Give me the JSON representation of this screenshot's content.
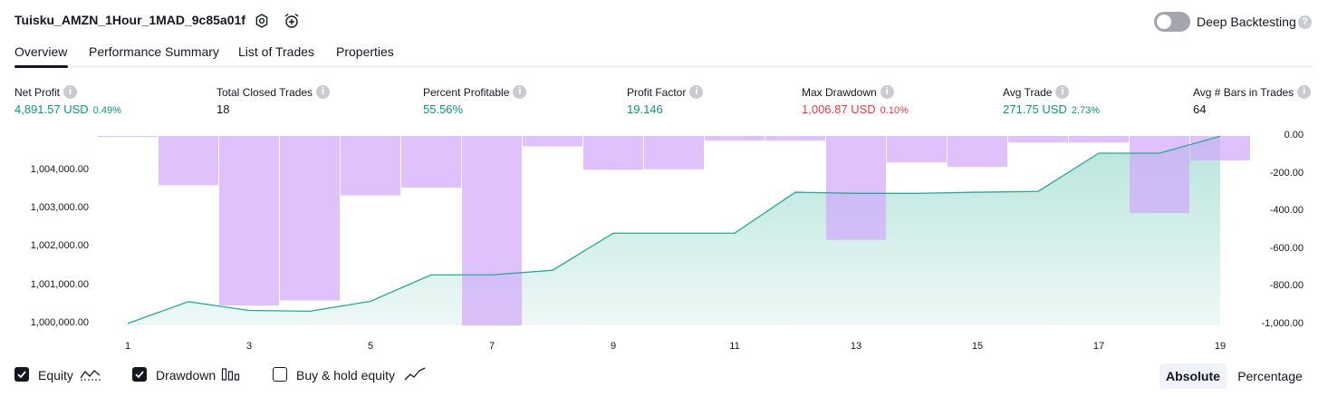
{
  "header": {
    "title": "Tuisku_AMZN_1Hour_1MAD_9c85a01f",
    "settings_icon": "gear-icon",
    "alert_icon": "alarm-clock-plus-icon",
    "deep_backtesting_label": "Deep Backtesting",
    "deep_backtesting_enabled": false,
    "help_icon": "question-icon"
  },
  "tabs": [
    {
      "label": "Overview",
      "active": true
    },
    {
      "label": "Performance Summary",
      "active": false
    },
    {
      "label": "List of Trades",
      "active": false
    },
    {
      "label": "Properties",
      "active": false
    }
  ],
  "metrics": [
    {
      "label": "Net Profit",
      "value": "4,891.57 USD",
      "pct": "0.49%",
      "color": "#089981"
    },
    {
      "label": "Total Closed Trades",
      "value": "18",
      "pct": "",
      "color": "#131722"
    },
    {
      "label": "Percent Profitable",
      "value": "55.56%",
      "pct": "",
      "color": "#089981"
    },
    {
      "label": "Profit Factor",
      "value": "19.146",
      "pct": "",
      "color": "#089981"
    },
    {
      "label": "Max Drawdown",
      "value": "1,006.87 USD",
      "pct": "0.10%",
      "color": "#f23645"
    },
    {
      "label": "Avg Trade",
      "value": "271.75 USD",
      "pct": "2.73%",
      "color": "#089981"
    },
    {
      "label": "Avg # Bars in Trades",
      "value": "64",
      "pct": "",
      "color": "#131722"
    }
  ],
  "chart_data": {
    "type": "line",
    "x": [
      1,
      2,
      3,
      4,
      5,
      6,
      7,
      8,
      9,
      10,
      11,
      12,
      13,
      14,
      15,
      16,
      17,
      18,
      19
    ],
    "xticks": [
      "1",
      "3",
      "5",
      "7",
      "9",
      "11",
      "13",
      "15",
      "17",
      "19"
    ],
    "y_left_ticks": [
      "1,000,000.00",
      "1,001,000.00",
      "1,002,000.00",
      "1,003,000.00",
      "1,004,000.00"
    ],
    "y_right_ticks": [
      "0.00",
      "-200.00",
      "-400.00",
      "-600.00",
      "-800.00",
      "-1,000.00"
    ],
    "ylim_left": [
      999950,
      1004900
    ],
    "ylim_right": [
      -1006.87,
      0
    ],
    "series": [
      {
        "name": "Equity",
        "axis": "left",
        "color": "#22ab94",
        "values": [
          1000000,
          1000570,
          1000340,
          1000320,
          1000580,
          1001270,
          1001270,
          1001390,
          1002360,
          1002360,
          1002360,
          1003430,
          1003400,
          1003400,
          1003430,
          1003450,
          1004450,
          1004450,
          1004890
        ]
      },
      {
        "name": "Drawdown",
        "axis": "right",
        "color": "#d1a8fb",
        "values": [
          -5,
          -262,
          -901,
          -875,
          -316,
          -275,
          -1006.87,
          -55,
          -180,
          -177,
          -25,
          -25,
          -552,
          -140,
          -165,
          -35,
          -35,
          -410,
          -130
        ]
      }
    ],
    "grid": false
  },
  "controls": {
    "equity": {
      "label": "Equity",
      "checked": true,
      "icon": "equity-line-icon"
    },
    "drawdown": {
      "label": "Drawdown",
      "checked": true,
      "icon": "drawdown-bars-icon"
    },
    "buyhold": {
      "label": "Buy & hold equity",
      "checked": false,
      "icon": "buy-hold-line-icon"
    },
    "absolute_label": "Absolute",
    "percentage_label": "Percentage",
    "mode": "Absolute"
  }
}
